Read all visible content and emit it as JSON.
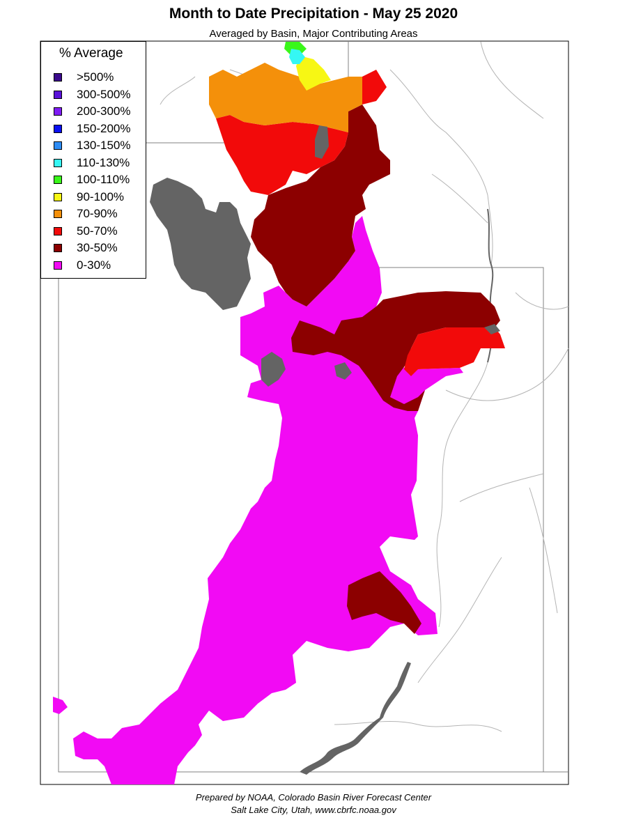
{
  "header": {
    "title": "Month to Date Precipitation - May 25 2020",
    "subtitle": "Averaged by Basin, Major Contributing Areas"
  },
  "legend": {
    "title": "% Average",
    "items": [
      {
        "label": ">500%",
        "color": "#3a0a8c"
      },
      {
        "label": "300-500%",
        "color": "#5a12d8"
      },
      {
        "label": "200-300%",
        "color": "#7f1cf4"
      },
      {
        "label": "150-200%",
        "color": "#0a10f2"
      },
      {
        "label": "130-150%",
        "color": "#2e8cf4"
      },
      {
        "label": "110-130%",
        "color": "#35f7f4"
      },
      {
        "label": "100-110%",
        "color": "#3af71a"
      },
      {
        "label": "90-100%",
        "color": "#f7f714"
      },
      {
        "label": "70-90%",
        "color": "#f4900a"
      },
      {
        "label": "50-70%",
        "color": "#f20a0a"
      },
      {
        "label": "30-50%",
        "color": "#8c0000"
      },
      {
        "label": "0-30%",
        "color": "#f20af4"
      }
    ]
  },
  "map_colors": {
    "lake": "#646464",
    "boundary": "#808080",
    "river": "#b4b4b4"
  },
  "footer": {
    "line1": "Prepared by NOAA, Colorado Basin River Forecast Center",
    "line2": "Salt Lake City, Utah, www.cbrfc.noaa.gov"
  }
}
